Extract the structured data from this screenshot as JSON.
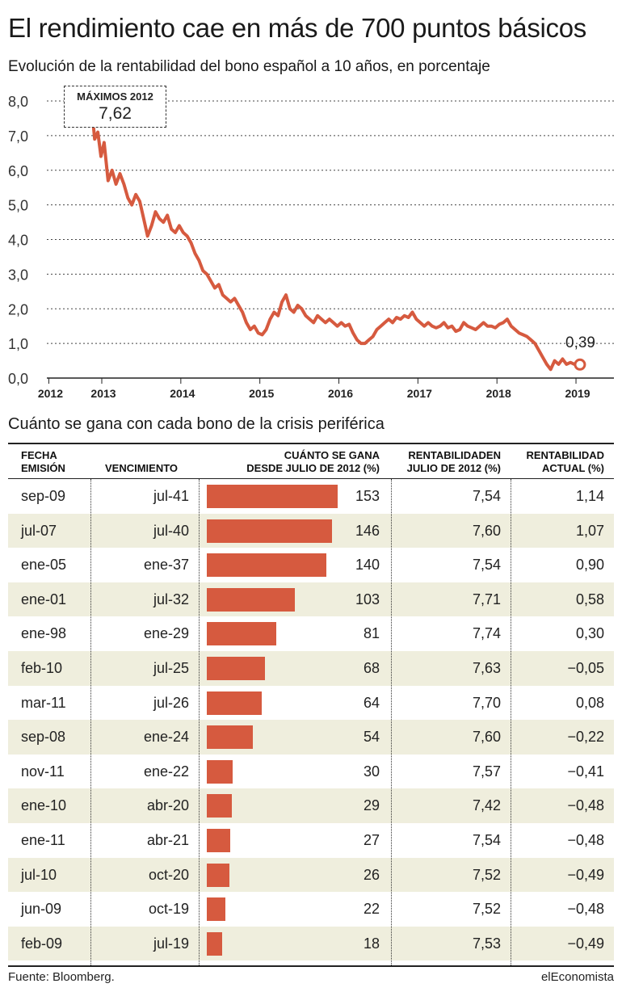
{
  "title": "El rendimiento cae en más de 700 puntos básicos",
  "subtitle": "Evolución de la rentabilidad del bono español a 10 años, en porcentaje",
  "colors": {
    "accent": "#d65a3f",
    "row_alt": "#efeedd",
    "text": "#222222"
  },
  "chart_data": [
    {
      "type": "line",
      "title": "Evolución de la rentabilidad del bono español a 10 años, en porcentaje",
      "ylabel": "%",
      "xlabel": "",
      "ylim": [
        0,
        8
      ],
      "y_ticks": [
        "0,0",
        "1,0",
        "2,0",
        "3,0",
        "4,0",
        "5,0",
        "6,0",
        "7,0",
        "8,0"
      ],
      "x_ticks": [
        "2012",
        "2013",
        "2014",
        "2015",
        "2016",
        "2017",
        "2018",
        "2019"
      ],
      "x_tick_years": [
        2012.0,
        2012.67,
        2013.67,
        2014.67,
        2015.67,
        2016.67,
        2017.67,
        2018.67
      ],
      "series": [
        {
          "name": "Bono español 10 años",
          "x": [
            2012.55,
            2012.58,
            2012.62,
            2012.66,
            2012.7,
            2012.75,
            2012.8,
            2012.85,
            2012.9,
            2012.95,
            2013.0,
            2013.05,
            2013.1,
            2013.15,
            2013.2,
            2013.25,
            2013.3,
            2013.35,
            2013.4,
            2013.45,
            2013.5,
            2013.55,
            2013.6,
            2013.65,
            2013.7,
            2013.75,
            2013.8,
            2013.85,
            2013.9,
            2013.95,
            2014.0,
            2014.05,
            2014.1,
            2014.15,
            2014.2,
            2014.25,
            2014.3,
            2014.35,
            2014.4,
            2014.45,
            2014.5,
            2014.55,
            2014.6,
            2014.65,
            2014.7,
            2014.75,
            2014.8,
            2014.85,
            2014.9,
            2014.95,
            2015.0,
            2015.05,
            2015.1,
            2015.15,
            2015.2,
            2015.25,
            2015.3,
            2015.35,
            2015.4,
            2015.45,
            2015.5,
            2015.55,
            2015.6,
            2015.65,
            2015.7,
            2015.75,
            2015.8,
            2015.85,
            2015.9,
            2015.95,
            2016.0,
            2016.05,
            2016.1,
            2016.15,
            2016.2,
            2016.25,
            2016.3,
            2016.35,
            2016.4,
            2016.45,
            2016.5,
            2016.55,
            2016.6,
            2016.65,
            2016.7,
            2016.75,
            2016.8,
            2016.85,
            2016.9,
            2016.95,
            2017.0,
            2017.05,
            2017.1,
            2017.15,
            2017.2,
            2017.25,
            2017.3,
            2017.35,
            2017.4,
            2017.45,
            2017.5,
            2017.55,
            2017.6,
            2017.65,
            2017.7,
            2017.75,
            2017.8,
            2017.85,
            2017.9,
            2017.95,
            2018.0,
            2018.05,
            2018.1,
            2018.15,
            2018.2,
            2018.25,
            2018.3,
            2018.35,
            2018.4,
            2018.45,
            2018.5,
            2018.55,
            2018.6,
            2018.65,
            2018.7,
            2018.72
          ],
          "values": [
            7.62,
            6.9,
            7.1,
            6.4,
            6.8,
            5.7,
            6.0,
            5.6,
            5.9,
            5.6,
            5.2,
            5.0,
            5.3,
            5.1,
            4.6,
            4.1,
            4.4,
            4.8,
            4.6,
            4.5,
            4.7,
            4.3,
            4.2,
            4.4,
            4.2,
            4.1,
            3.9,
            3.6,
            3.4,
            3.1,
            3.0,
            2.8,
            2.6,
            2.7,
            2.4,
            2.3,
            2.2,
            2.3,
            2.1,
            1.9,
            1.6,
            1.4,
            1.5,
            1.3,
            1.25,
            1.4,
            1.7,
            1.9,
            1.8,
            2.2,
            2.4,
            2.0,
            1.9,
            2.1,
            2.0,
            1.8,
            1.7,
            1.6,
            1.8,
            1.7,
            1.6,
            1.7,
            1.6,
            1.5,
            1.6,
            1.5,
            1.55,
            1.3,
            1.1,
            1.0,
            1.0,
            1.1,
            1.2,
            1.4,
            1.5,
            1.6,
            1.7,
            1.6,
            1.75,
            1.7,
            1.8,
            1.75,
            1.9,
            1.7,
            1.6,
            1.5,
            1.6,
            1.5,
            1.45,
            1.5,
            1.6,
            1.45,
            1.5,
            1.35,
            1.4,
            1.6,
            1.5,
            1.45,
            1.4,
            1.5,
            1.6,
            1.5,
            1.5,
            1.45,
            1.55,
            1.6,
            1.7,
            1.5,
            1.4,
            1.3,
            1.25,
            1.2,
            1.1,
            1.0,
            0.8,
            0.6,
            0.4,
            0.25,
            0.5,
            0.4,
            0.55,
            0.4,
            0.45,
            0.4,
            0.39,
            0.39
          ]
        }
      ],
      "annotations": [
        {
          "label": "MÁXIMOS 2012",
          "value": "7,62",
          "point": [
            2012.55,
            7.62
          ]
        },
        {
          "value": "0,39",
          "point": [
            2018.72,
            0.39
          ]
        }
      ]
    },
    {
      "type": "bar",
      "title": "Cuánto se gana con cada bono de la crisis periférica",
      "columns": [
        "FECHA EMISIÓN",
        "VENCIMIENTO",
        "CUÁNTO SE GANA DESDE JULIO DE 2012 (%)",
        "RENTABILIDAD EN JULIO DE 2012 (%)",
        "RENTABILIDAD ACTUAL (%)"
      ],
      "categories": [
        "sep-09",
        "jul-07",
        "ene-05",
        "ene-01",
        "ene-98",
        "feb-10",
        "mar-11",
        "sep-08",
        "nov-11",
        "ene-10",
        "ene-11",
        "jul-10",
        "jun-09",
        "feb-09"
      ],
      "values": [
        153,
        146,
        140,
        103,
        81,
        68,
        64,
        54,
        30,
        29,
        27,
        26,
        22,
        18
      ],
      "xlim": [
        0,
        153
      ]
    }
  ],
  "table": {
    "title": "Cuánto se gana con cada bono de la crisis periférica",
    "headers": {
      "fecha_1": "FECHA",
      "fecha_2": "EMISIÓN",
      "venc": "VENCIMIENTO",
      "gana_1": "CUÁNTO SE GANA",
      "gana_2": "DESDE JULIO DE 2012 (%)",
      "rentj_1": "RENTABILIDADEN",
      "rentj_2": "JULIO DE 2012 (%)",
      "rent_1": "RENTABILIDAD",
      "rent_2": "ACTUAL (%)"
    },
    "rows": [
      {
        "fecha": "sep-09",
        "venc": "jul-41",
        "gana": "153",
        "rent_julio": "7,54",
        "rent_actual": "1,14"
      },
      {
        "fecha": "jul-07",
        "venc": "jul-40",
        "gana": "146",
        "rent_julio": "7,60",
        "rent_actual": "1,07"
      },
      {
        "fecha": "ene-05",
        "venc": "ene-37",
        "gana": "140",
        "rent_julio": "7,54",
        "rent_actual": "0,90"
      },
      {
        "fecha": "ene-01",
        "venc": "jul-32",
        "gana": "103",
        "rent_julio": "7,71",
        "rent_actual": "0,58"
      },
      {
        "fecha": "ene-98",
        "venc": "ene-29",
        "gana": "81",
        "rent_julio": "7,74",
        "rent_actual": "0,30"
      },
      {
        "fecha": "feb-10",
        "venc": "jul-25",
        "gana": "68",
        "rent_julio": "7,63",
        "rent_actual": "−0,05"
      },
      {
        "fecha": "mar-11",
        "venc": "jul-26",
        "gana": "64",
        "rent_julio": "7,70",
        "rent_actual": "0,08"
      },
      {
        "fecha": "sep-08",
        "venc": "ene-24",
        "gana": "54",
        "rent_julio": "7,60",
        "rent_actual": "−0,22"
      },
      {
        "fecha": "nov-11",
        "venc": "ene-22",
        "gana": "30",
        "rent_julio": "7,57",
        "rent_actual": "−0,41"
      },
      {
        "fecha": "ene-10",
        "venc": "abr-20",
        "gana": "29",
        "rent_julio": "7,42",
        "rent_actual": "−0,48"
      },
      {
        "fecha": "ene-11",
        "venc": "abr-21",
        "gana": "27",
        "rent_julio": "7,54",
        "rent_actual": "−0,48"
      },
      {
        "fecha": "jul-10",
        "venc": "oct-20",
        "gana": "26",
        "rent_julio": "7,52",
        "rent_actual": "−0,49"
      },
      {
        "fecha": "jun-09",
        "venc": "oct-19",
        "gana": "22",
        "rent_julio": "7,52",
        "rent_actual": "−0,48"
      },
      {
        "fecha": "feb-09",
        "venc": "jul-19",
        "gana": "18",
        "rent_julio": "7,53",
        "rent_actual": "−0,49"
      }
    ]
  },
  "footer": {
    "source": "Fuente: Bloomberg.",
    "brand": "elEconomista"
  }
}
